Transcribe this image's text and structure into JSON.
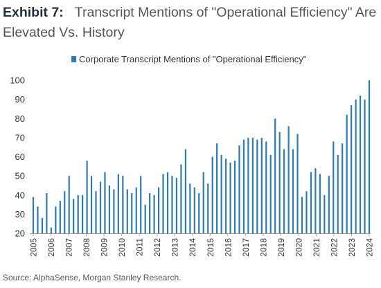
{
  "title": {
    "exhibit": "Exhibit 7:",
    "text": "Transcript Mentions of \"Operational Efficiency\" Are Elevated Vs. History"
  },
  "source": "Source: AlphaSense, Morgan Stanley Research.",
  "chart_data": {
    "type": "bar",
    "title": "",
    "xlabel": "",
    "ylabel": "",
    "ylim": [
      20,
      100
    ],
    "yticks": [
      20,
      30,
      40,
      50,
      60,
      70,
      80,
      90,
      100
    ],
    "grid": false,
    "legend_position": "top",
    "color": "#2b7bb5",
    "xtick_labels": [
      "2005",
      "2006",
      "2007",
      "2008",
      "2009",
      "2010",
      "2011",
      "2012",
      "2013",
      "2014",
      "2015",
      "2016",
      "2017",
      "2018",
      "2019",
      "2020",
      "2021",
      "2022",
      "2023",
      "2024"
    ],
    "series": [
      {
        "name": "Corporate Transcript Mentions of \"Operational Efficiency\"",
        "values": [
          39,
          34,
          28,
          41,
          23,
          34,
          37,
          42,
          50,
          38,
          40,
          40,
          58,
          50,
          42,
          47,
          52,
          45,
          43,
          51,
          50,
          43,
          41,
          44,
          50,
          35,
          41,
          40,
          44,
          51,
          52,
          50,
          49,
          56,
          64,
          46,
          44,
          41,
          52,
          46,
          60,
          67,
          61,
          59,
          57,
          58,
          66,
          69,
          70,
          70,
          69,
          70,
          68,
          61,
          80,
          73,
          64,
          76,
          64,
          72,
          39,
          42,
          52,
          54,
          51,
          40,
          50,
          68,
          61,
          67,
          82,
          87,
          90,
          92,
          90,
          100
        ]
      }
    ]
  }
}
